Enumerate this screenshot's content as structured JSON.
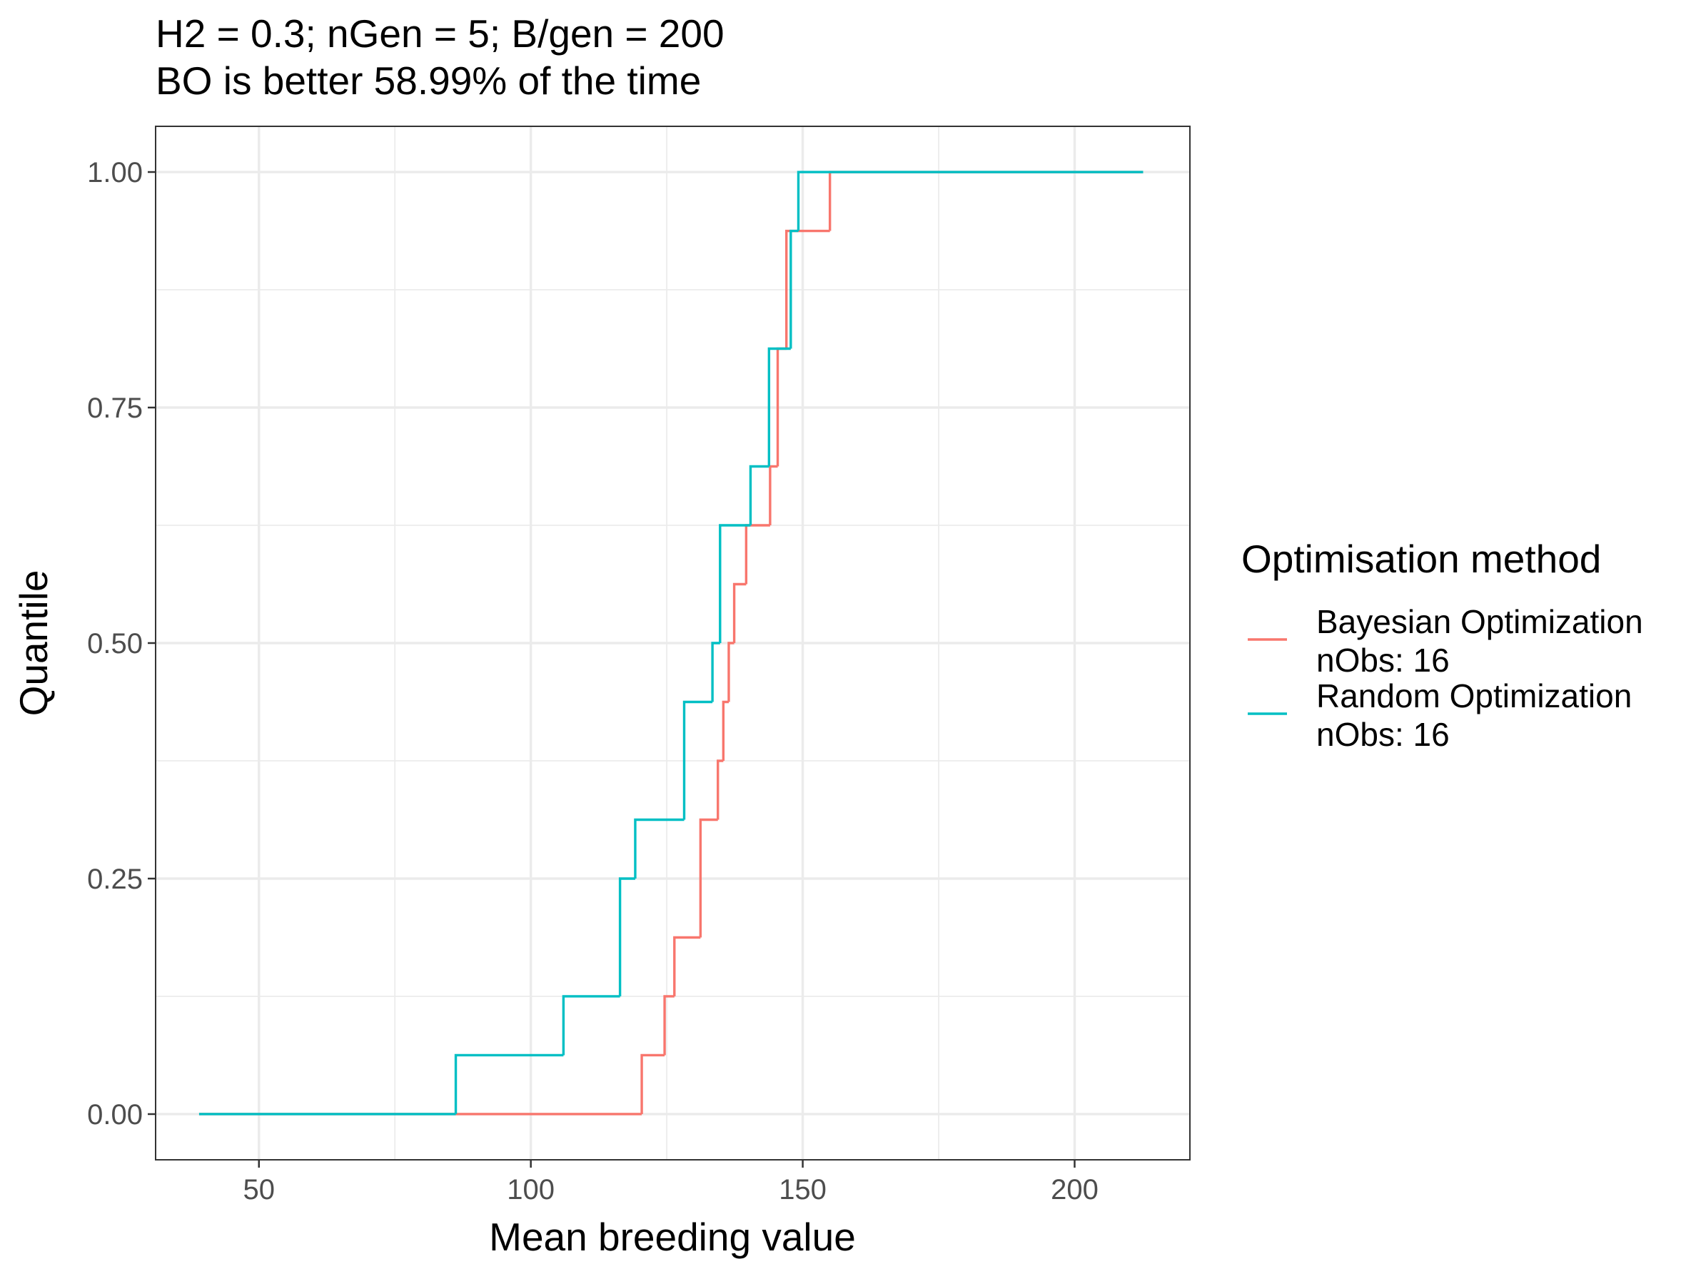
{
  "chart_data": {
    "type": "step",
    "title": "H2 = 0.3; nGen = 5; B/gen = 200",
    "subtitle": "BO is better 58.99% of the time",
    "x_label": "Mean breeding value",
    "y_label": "Quantile",
    "legend_title": "Optimisation method",
    "legend_position": "right",
    "grid": true,
    "xlim": [
      31,
      221.2
    ],
    "ylim": [
      -0.0485,
      1.0485
    ],
    "xticks": [
      50,
      100,
      150,
      200
    ],
    "yticks": [
      {
        "value": 0,
        "label": "0.00"
      },
      {
        "value": 0.25,
        "label": "0.25"
      },
      {
        "value": 0.5,
        "label": "0.50"
      },
      {
        "value": 0.75,
        "label": "0.75"
      },
      {
        "value": 1,
        "label": "1.00"
      }
    ],
    "x_minor_grid": [
      75,
      125,
      175
    ],
    "y_minor_grid": [
      0.125,
      0.375,
      0.625,
      0.875
    ],
    "series": [
      {
        "name": "Bayesian Optimization\nnObs: 16",
        "color": "#F8766D",
        "x": [
          39,
          120.4,
          124.6,
          126.4,
          131.2,
          134.4,
          135.4,
          136.4,
          137.4,
          139.6,
          144.0,
          145.4,
          147.0,
          155.0,
          212.6
        ],
        "values": [
          0,
          0.0625,
          0.125,
          0.1875,
          0.3125,
          0.375,
          0.4375,
          0.5,
          0.5625,
          0.625,
          0.6875,
          0.8125,
          0.9375,
          1,
          1
        ]
      },
      {
        "name": "Random Optimization\nnObs: 16",
        "color": "#00BFC4",
        "x": [
          39,
          86.2,
          106,
          116.4,
          119.2,
          128.2,
          133.4,
          134.8,
          140.4,
          143.8,
          147.8,
          149.2,
          212.6
        ],
        "values": [
          0,
          0.0625,
          0.125,
          0.25,
          0.3125,
          0.4375,
          0.5,
          0.625,
          0.6875,
          0.8125,
          0.9375,
          1,
          1
        ]
      }
    ]
  }
}
